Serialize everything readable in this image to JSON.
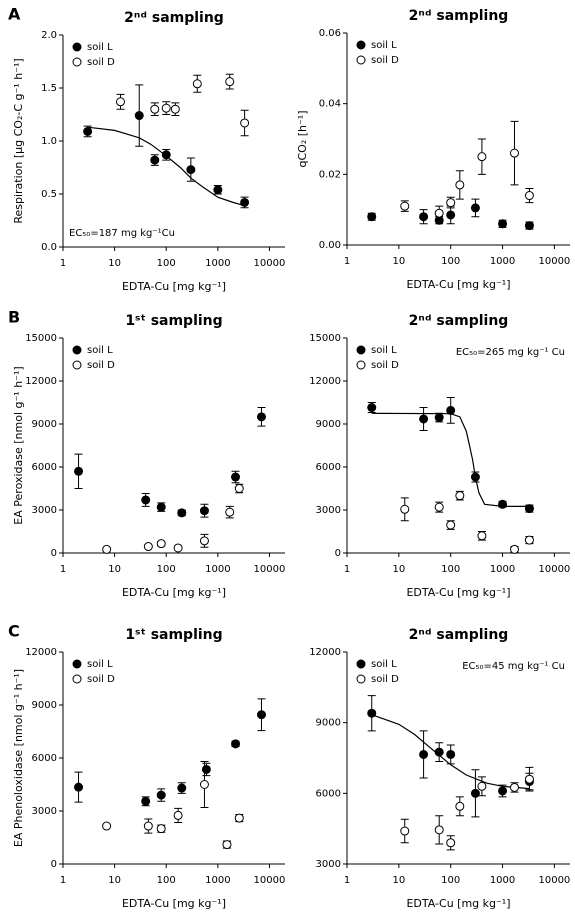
{
  "chart_data": [
    {
      "type": "scatter",
      "panel_label": "A",
      "title": "2ⁿᵈ sampling",
      "xlabel": "EDTA-Cu [mg kg⁻¹]",
      "ylabel": "Respiration [µg CO₂-C g⁻¹ h⁻¹]",
      "annotation": "EC₅₀=187 mg kg⁻¹Cu",
      "annotation_position": "lower left",
      "legend": "upper left",
      "xlog": true,
      "xlim": [
        1,
        20000
      ],
      "xticks": [
        1,
        10,
        100,
        1000,
        10000
      ],
      "ylim": [
        0,
        2
      ],
      "yticks": [
        {
          "value": 0,
          "label": "0.0"
        },
        {
          "value": 0.5,
          "label": "0.5"
        },
        {
          "value": 1,
          "label": "1.0"
        },
        {
          "value": 1.5,
          "label": "1.5"
        },
        {
          "value": 2,
          "label": "2.0"
        }
      ],
      "series": [
        {
          "name": "soil L",
          "color": "#000000",
          "marker_fill": "#000000",
          "x": [
            3,
            30,
            60,
            100,
            300,
            1000,
            3300
          ],
          "values": [
            1.09,
            1.24,
            0.82,
            0.87,
            0.73,
            0.54,
            0.42
          ],
          "errors": [
            0.05,
            0.29,
            0.05,
            0.05,
            0.11,
            0.04,
            0.05
          ]
        },
        {
          "name": "soil D",
          "color": "#000000",
          "marker_fill": "#ffffff",
          "x": [
            13,
            60,
            100,
            150,
            400,
            1700,
            3300
          ],
          "values": [
            1.37,
            1.3,
            1.31,
            1.3,
            1.54,
            1.56,
            1.17
          ],
          "errors": [
            0.07,
            0.06,
            0.06,
            0.06,
            0.08,
            0.07,
            0.12
          ]
        }
      ],
      "fit": {
        "color": "#000000",
        "x": [
          3,
          10,
          30,
          50,
          100,
          187,
          300,
          500,
          1000,
          2000,
          3300
        ],
        "values": [
          1.13,
          1.1,
          1.03,
          0.97,
          0.86,
          0.75,
          0.65,
          0.57,
          0.47,
          0.42,
          0.39
        ]
      }
    },
    {
      "type": "scatter",
      "title": "2ⁿᵈ sampling",
      "xlabel": "EDTA-Cu [mg kg⁻¹]",
      "ylabel": "qCO₂ [h⁻¹]",
      "legend": "upper left",
      "xlog": true,
      "xlim": [
        1,
        20000
      ],
      "xticks": [
        1,
        10,
        100,
        1000,
        10000
      ],
      "ylim": [
        0,
        0.06
      ],
      "yticks": [
        {
          "value": 0,
          "label": "0.00"
        },
        {
          "value": 0.02,
          "label": "0.02"
        },
        {
          "value": 0.04,
          "label": "0.04"
        },
        {
          "value": 0.06,
          "label": "0.06"
        }
      ],
      "series": [
        {
          "name": "soil L",
          "color": "#000000",
          "marker_fill": "#000000",
          "x": [
            3,
            30,
            60,
            100,
            300,
            1000,
            3300
          ],
          "values": [
            0.008,
            0.008,
            0.007,
            0.0085,
            0.0105,
            0.006,
            0.0055
          ],
          "errors": [
            0.001,
            0.002,
            0.001,
            0.0025,
            0.0025,
            0.001,
            0.001
          ]
        },
        {
          "name": "soil D",
          "color": "#000000",
          "marker_fill": "#ffffff",
          "x": [
            13,
            60,
            100,
            150,
            400,
            1700,
            3300
          ],
          "values": [
            0.011,
            0.009,
            0.012,
            0.017,
            0.025,
            0.026,
            0.014
          ],
          "errors": [
            0.0015,
            0.002,
            0.0015,
            0.004,
            0.005,
            0.009,
            0.002
          ]
        }
      ]
    },
    {
      "type": "scatter",
      "panel_label": "B",
      "title": "1ˢᵗ sampling",
      "xlabel": "EDTA-Cu [mg kg⁻¹]",
      "ylabel": "EA Peroxidase [nmol g⁻¹ h⁻¹]",
      "legend": "upper left",
      "xlog": true,
      "xlim": [
        1,
        20000
      ],
      "xticks": [
        1,
        10,
        100,
        1000,
        10000
      ],
      "ylim": [
        0,
        15000
      ],
      "yticks": [
        0,
        3000,
        6000,
        9000,
        12000,
        15000
      ],
      "series": [
        {
          "name": "soil L",
          "color": "#000000",
          "marker_fill": "#000000",
          "x": [
            2,
            40,
            80,
            200,
            550,
            2200,
            7000
          ],
          "values": [
            5700,
            3700,
            3200,
            2800,
            2950,
            5300,
            9500
          ],
          "errors": [
            1200,
            450,
            300,
            200,
            450,
            400,
            650
          ]
        },
        {
          "name": "soil D",
          "color": "#000000",
          "marker_fill": "#ffffff",
          "x": [
            7,
            45,
            80,
            170,
            550,
            1700,
            2600
          ],
          "values": [
            250,
            450,
            650,
            350,
            850,
            2850,
            4500
          ],
          "errors": [
            100,
            100,
            150,
            100,
            450,
            400,
            300
          ]
        }
      ]
    },
    {
      "type": "scatter",
      "title": "2ⁿᵈ sampling",
      "xlabel": "EDTA-Cu [mg kg⁻¹]",
      "annotation": "EC₅₀=265 mg kg⁻¹ Cu",
      "annotation_position": "upper right",
      "legend": "upper left",
      "xlog": true,
      "xlim": [
        1,
        20000
      ],
      "xticks": [
        1,
        10,
        100,
        1000,
        10000
      ],
      "ylim": [
        0,
        15000
      ],
      "yticks": [
        0,
        3000,
        6000,
        9000,
        12000,
        15000
      ],
      "series": [
        {
          "name": "soil L",
          "color": "#000000",
          "marker_fill": "#000000",
          "x": [
            3,
            30,
            60,
            100,
            300,
            1000,
            3300
          ],
          "values": [
            10150,
            9350,
            9450,
            9950,
            5300,
            3400,
            3100
          ],
          "errors": [
            350,
            800,
            300,
            900,
            350,
            200,
            250
          ]
        },
        {
          "name": "soil D",
          "color": "#000000",
          "marker_fill": "#ffffff",
          "x": [
            13,
            60,
            100,
            150,
            400,
            1700,
            3300
          ],
          "values": [
            3050,
            3200,
            1950,
            4000,
            1200,
            250,
            900
          ],
          "errors": [
            800,
            350,
            300,
            300,
            300,
            200,
            250
          ]
        }
      ],
      "fit": {
        "color": "#000000",
        "x": [
          3,
          100,
          150,
          200,
          230,
          265,
          300,
          350,
          450,
          1000,
          3300
        ],
        "values": [
          9750,
          9720,
          9500,
          8500,
          7500,
          6500,
          5300,
          4200,
          3400,
          3250,
          3250
        ]
      }
    },
    {
      "type": "scatter",
      "panel_label": "C",
      "title": "1ˢᵗ sampling",
      "xlabel": "EDTA-Cu [mg kg⁻¹]",
      "ylabel": "EA Phenoloxidase [nmol g⁻¹ h⁻¹]",
      "legend": "upper left",
      "xlog": true,
      "xlim": [
        1,
        20000
      ],
      "xticks": [
        1,
        10,
        100,
        1000,
        10000
      ],
      "ylim": [
        0,
        12000
      ],
      "yticks": [
        0,
        3000,
        6000,
        9000,
        12000
      ],
      "series": [
        {
          "name": "soil L",
          "color": "#000000",
          "marker_fill": "#000000",
          "x": [
            2,
            40,
            80,
            200,
            600,
            2200,
            7000
          ],
          "values": [
            4350,
            3550,
            3900,
            4300,
            5350,
            6800,
            8450
          ],
          "errors": [
            850,
            250,
            350,
            300,
            350,
            150,
            900
          ]
        },
        {
          "name": "soil D",
          "color": "#000000",
          "marker_fill": "#ffffff",
          "x": [
            7,
            45,
            80,
            170,
            550,
            1500,
            2600
          ],
          "values": [
            2150,
            2150,
            2000,
            2750,
            4500,
            1100,
            2600
          ],
          "errors": [
            100,
            400,
            200,
            400,
            1300,
            200,
            200
          ]
        }
      ]
    },
    {
      "type": "scatter",
      "title": "2ⁿᵈ sampling",
      "xlabel": "EDTA-Cu [mg kg⁻¹]",
      "annotation": "EC₅₀=45 mg kg⁻¹ Cu",
      "annotation_position": "upper right",
      "legend": "upper left",
      "xlog": true,
      "xlim": [
        1,
        20000
      ],
      "xticks": [
        1,
        10,
        100,
        1000,
        10000
      ],
      "ylim": [
        3000,
        12000
      ],
      "yticks": [
        3000,
        6000,
        9000,
        12000
      ],
      "series": [
        {
          "name": "soil L",
          "color": "#000000",
          "marker_fill": "#000000",
          "x": [
            3,
            30,
            60,
            100,
            300,
            1000,
            3300
          ],
          "values": [
            9400,
            7650,
            7750,
            7650,
            6000,
            6100,
            6500
          ],
          "errors": [
            750,
            1000,
            400,
            400,
            1000,
            250,
            350
          ]
        },
        {
          "name": "soil D",
          "color": "#000000",
          "marker_fill": "#ffffff",
          "x": [
            13,
            60,
            100,
            150,
            400,
            1700,
            3300
          ],
          "values": [
            4400,
            4450,
            3900,
            5450,
            6300,
            6250,
            6600
          ],
          "errors": [
            500,
            600,
            300,
            400,
            400,
            200,
            500
          ]
        }
      ],
      "fit": {
        "color": "#000000",
        "x": [
          3,
          10,
          20,
          45,
          100,
          200,
          500,
          1000,
          3300
        ],
        "values": [
          9340,
          8930,
          8500,
          7850,
          7210,
          6780,
          6430,
          6300,
          6200
        ]
      }
    }
  ]
}
